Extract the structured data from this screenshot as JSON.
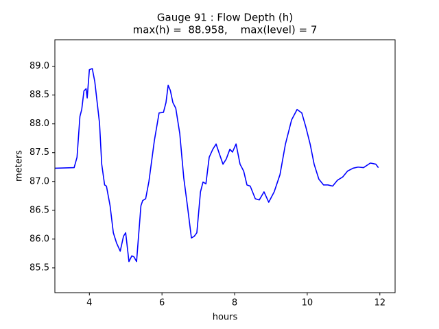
{
  "chart_data": {
    "type": "line",
    "title": "Gauge 91 : Flow Depth (h)",
    "subtitle": "max(h) =  88.958,    max(level) = 7",
    "x_label": "hours",
    "y_label": "meters",
    "xlim": [
      3.05,
      12.42
    ],
    "ylim": [
      85.07,
      89.46
    ],
    "xticks": [
      4,
      6,
      8,
      10,
      12
    ],
    "yticks": [
      85.5,
      {
        "value": 86,
        "label": "86.0"
      },
      86.5,
      {
        "value": 87,
        "label": "87.0"
      },
      87.5,
      {
        "value": 88,
        "label": "88.0"
      },
      88.5,
      {
        "value": 89,
        "label": "89.0"
      }
    ],
    "grid": false,
    "series": [
      {
        "name": "h",
        "color": "#0000ff",
        "x": [
          3.06,
          3.58,
          3.66,
          3.74,
          3.79,
          3.85,
          3.91,
          3.94,
          4.0,
          4.08,
          4.15,
          4.28,
          4.34,
          4.42,
          4.47,
          4.57,
          4.66,
          4.75,
          4.85,
          4.94,
          5.0,
          5.09,
          5.17,
          5.23,
          5.3,
          5.42,
          5.47,
          5.55,
          5.64,
          5.79,
          5.92,
          6.04,
          6.11,
          6.17,
          6.23,
          6.3,
          6.38,
          6.49,
          6.6,
          6.7,
          6.81,
          6.89,
          6.96,
          7.06,
          7.13,
          7.21,
          7.3,
          7.4,
          7.49,
          7.58,
          7.68,
          7.77,
          7.87,
          7.94,
          8.04,
          8.15,
          8.25,
          8.34,
          8.43,
          8.57,
          8.68,
          8.81,
          8.94,
          9.09,
          9.25,
          9.4,
          9.57,
          9.72,
          9.85,
          9.96,
          10.08,
          10.19,
          10.32,
          10.45,
          10.57,
          10.7,
          10.83,
          10.98,
          11.11,
          11.26,
          11.4,
          11.55,
          11.74,
          11.89,
          11.96
        ],
        "values": [
          87.23,
          87.24,
          87.42,
          88.13,
          88.25,
          88.57,
          88.61,
          88.45,
          88.94,
          88.96,
          88.73,
          88.01,
          87.3,
          86.94,
          86.92,
          86.58,
          86.11,
          85.93,
          85.79,
          86.05,
          86.11,
          85.61,
          85.71,
          85.69,
          85.61,
          86.58,
          86.67,
          86.7,
          87.0,
          87.71,
          88.19,
          88.2,
          88.37,
          88.67,
          88.58,
          88.37,
          88.27,
          87.83,
          87.06,
          86.58,
          86.02,
          86.05,
          86.11,
          86.82,
          86.99,
          86.96,
          87.42,
          87.56,
          87.65,
          87.48,
          87.3,
          87.39,
          87.56,
          87.51,
          87.65,
          87.3,
          87.18,
          86.94,
          86.92,
          86.7,
          86.68,
          86.82,
          86.64,
          86.82,
          87.12,
          87.65,
          88.07,
          88.25,
          88.19,
          87.95,
          87.65,
          87.3,
          87.04,
          86.94,
          86.94,
          86.92,
          87.02,
          87.08,
          87.18,
          87.23,
          87.25,
          87.24,
          87.32,
          87.3,
          87.24
        ]
      }
    ]
  }
}
